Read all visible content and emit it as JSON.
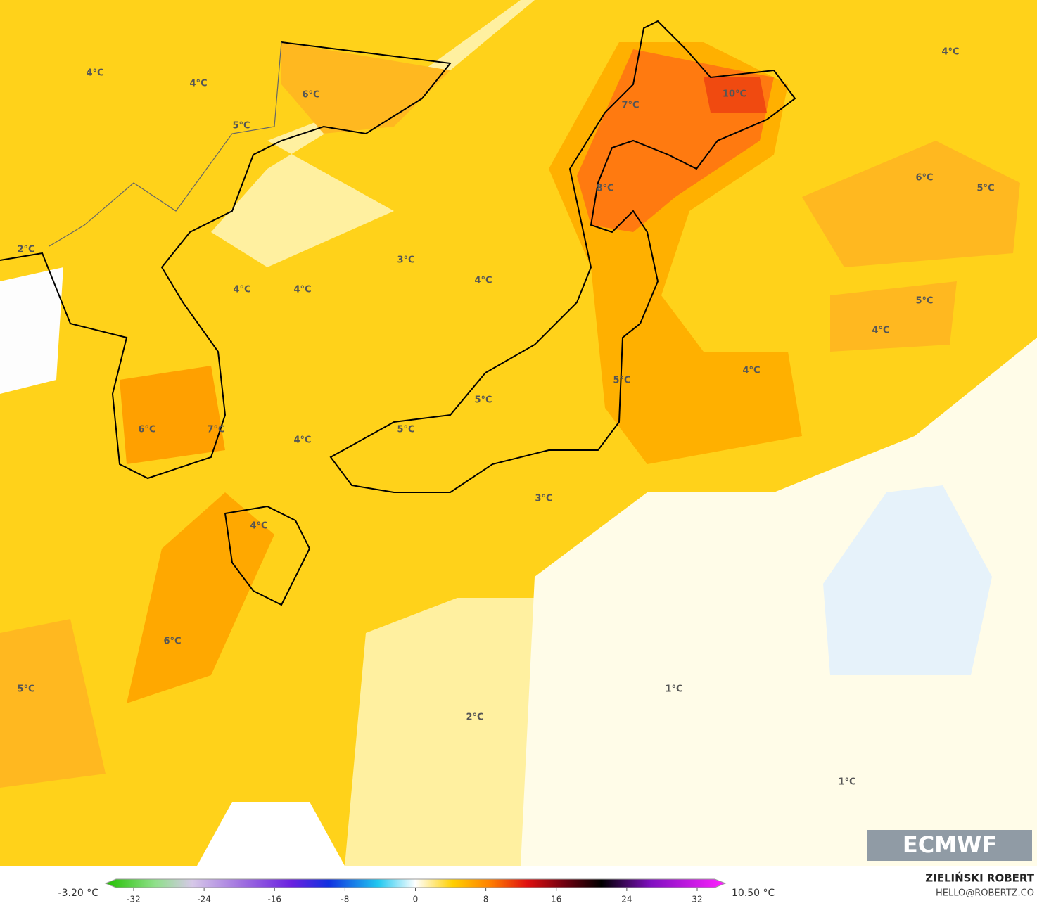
{
  "map_labels": [
    "4°C",
    "4°C",
    "6°C",
    "5°C",
    "4°C",
    "10°C",
    "7°C",
    "8°C",
    "6°C",
    "5°C",
    "2°C",
    "3°C",
    "4°C",
    "4°C",
    "4°C",
    "5°C",
    "4°C",
    "4°C",
    "5°C",
    "5°C",
    "5°C",
    "6°C",
    "7°C",
    "4°C",
    "3°C",
    "4°C",
    "6°C",
    "5°C",
    "1°C",
    "2°C",
    "1°C"
  ],
  "logo": "ECMWF",
  "colorbar": {
    "min_label": "-3.20 °C",
    "max_label": "10.50 °C",
    "ticks": [
      -32,
      -24,
      -16,
      -8,
      0,
      8,
      16,
      24,
      32
    ]
  },
  "credit": {
    "author": "ZIELIŃSKI ROBERT",
    "contact": "HELLO@ROBERTZ.CO"
  }
}
